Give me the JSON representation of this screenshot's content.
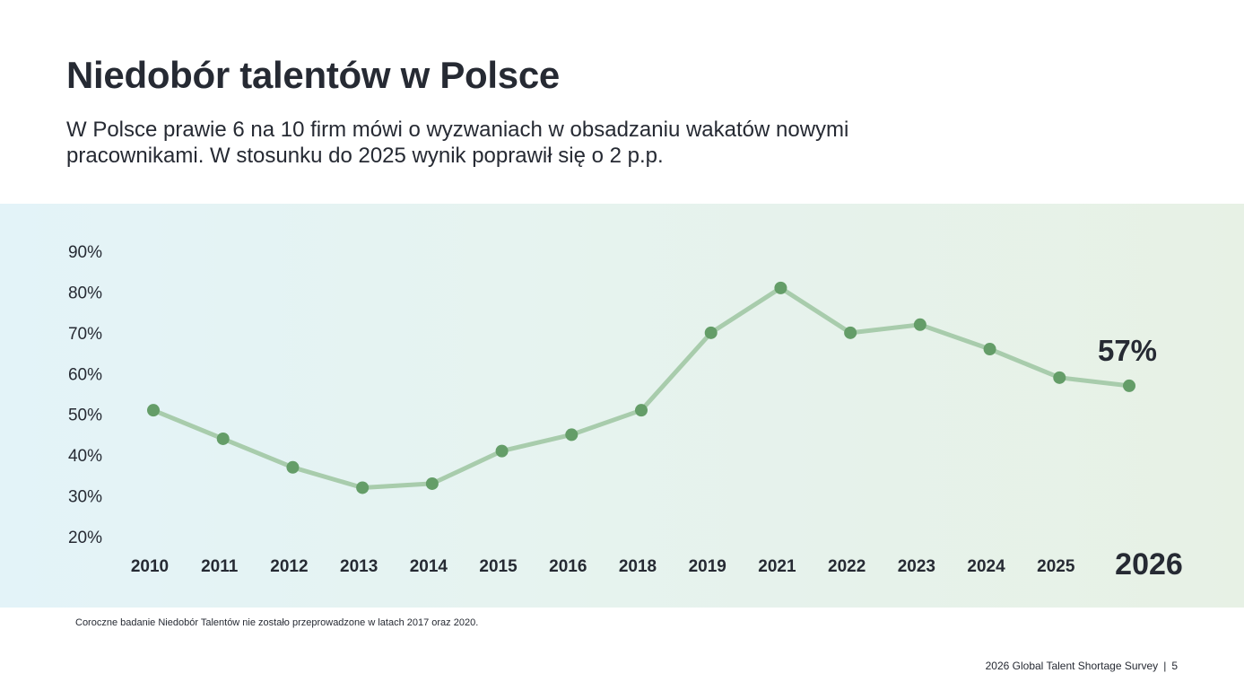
{
  "title": "Niedobór talentów w Polsce",
  "subtitle": "W Polsce prawie 6 na 10 firm mówi o wyzwaniach w obsadzaniu wakatów nowymi pracownikami. W stosunku do 2025 wynik poprawił się o 2 p.p.",
  "footnote": "Coroczne badanie Niedobór Talentów nie zostało przeprowadzone w latach 2017 oraz 2020.",
  "footer": {
    "survey": "2026 Global Talent Shortage Survey",
    "separator": "|",
    "page": "5"
  },
  "colors": {
    "line": "#a8ccac",
    "marker": "#649d68",
    "text": "#262a33",
    "band_left": "#e3f3f8",
    "band_right": "#e7f1e5"
  },
  "chart_data": {
    "type": "line",
    "categories": [
      "2010",
      "2011",
      "2012",
      "2013",
      "2014",
      "2015",
      "2016",
      "2018",
      "2019",
      "2021",
      "2022",
      "2023",
      "2024",
      "2025",
      "2026"
    ],
    "series": [
      {
        "values": [
          51,
          44,
          37,
          32,
          33,
          41,
          45,
          51,
          70,
          81,
          70,
          72,
          66,
          59,
          57
        ]
      }
    ],
    "y_ticks": [
      "20%",
      "30%",
      "40%",
      "50%",
      "60%",
      "70%",
      "80%",
      "90%"
    ],
    "ylim": [
      20,
      90
    ],
    "highlight": {
      "category": "2026",
      "label": "57%"
    },
    "grid": false,
    "legend": "none"
  }
}
